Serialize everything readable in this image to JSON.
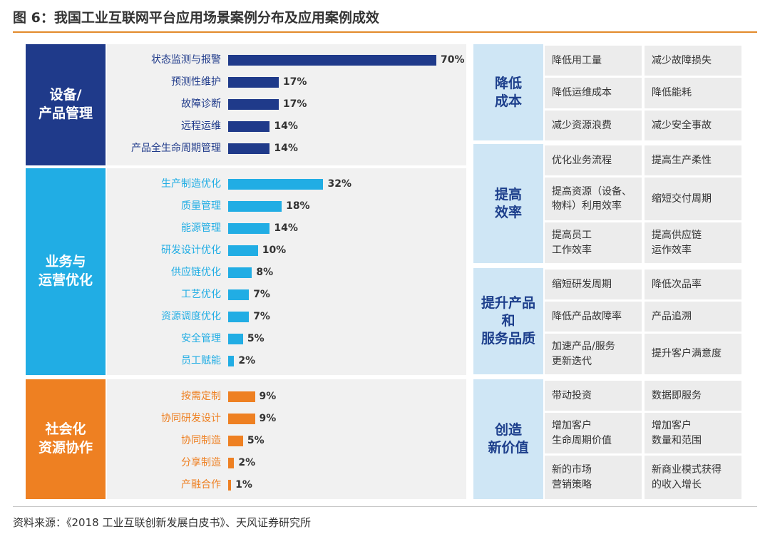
{
  "figure": {
    "title": "图 6：我国工业互联网平台应用场景案例分布及应用案例成效",
    "source": "资料来源：《2018 工业互联创新发展白皮书》、天风证券研究所"
  },
  "colors": {
    "navy": "#1f3a8a",
    "cyan": "#21ade4",
    "orange": "#ee8022",
    "accent_rule": "#e28a2b",
    "outcome_header_bg": "#cfe6f5",
    "outcome_header_text": "#1d3f8c"
  },
  "chart_data": {
    "type": "bar",
    "orientation": "horizontal",
    "unit": "%",
    "xlim": [
      0,
      70
    ],
    "grid": false,
    "groups": [
      {
        "name": "设备/\n产品管理",
        "color": "#1f3a8a",
        "categories": [
          "状态监测与报警",
          "预测性维护",
          "故障诊断",
          "远程运维",
          "产品全生命周期管理"
        ],
        "values": [
          70,
          17,
          17,
          14,
          14
        ],
        "labels": [
          "70%",
          "17%",
          "17%",
          "14%",
          "14%"
        ]
      },
      {
        "name": "业务与\n运营优化",
        "color": "#21ade4",
        "categories": [
          "生产制造优化",
          "质量管理",
          "能源管理",
          "研发设计优化",
          "供应链优化",
          "工艺优化",
          "资源调度优化",
          "安全管理",
          "员工赋能"
        ],
        "values": [
          32,
          18,
          14,
          10,
          8,
          7,
          7,
          5,
          2
        ],
        "labels": [
          "32%",
          "18%",
          "14%",
          "10%",
          "8%",
          "7%",
          "7%",
          "5%",
          "2%"
        ]
      },
      {
        "name": "社会化\n资源协作",
        "color": "#ee8022",
        "categories": [
          "按需定制",
          "协同研发设计",
          "协同制造",
          "分享制造",
          "产融合作"
        ],
        "values": [
          9,
          9,
          5,
          2,
          1
        ],
        "labels": [
          "9%",
          "9%",
          "5%",
          "2%",
          "1%"
        ]
      }
    ]
  },
  "outcomes": [
    {
      "name": "降低\n成本",
      "rows": [
        [
          "降低用工量",
          "减少故障损失"
        ],
        [
          "降低运维成本",
          "降低能耗"
        ],
        [
          "减少资源浪费",
          "减少安全事故"
        ]
      ]
    },
    {
      "name": "提高\n效率",
      "rows": [
        [
          "优化业务流程",
          "提高生产柔性"
        ],
        [
          "提高资源（设备、\n物料）利用效率",
          "缩短交付周期"
        ],
        [
          "提高员工\n工作效率",
          "提高供应链\n运作效率"
        ]
      ]
    },
    {
      "name": "提升产品\n和\n服务品质",
      "rows": [
        [
          "缩短研发周期",
          "降低次品率"
        ],
        [
          "降低产品故障率",
          "产品追溯"
        ],
        [
          "加速产品/服务\n更新迭代",
          "提升客户满意度"
        ]
      ]
    },
    {
      "name": "创造\n新价值",
      "rows": [
        [
          "带动投资",
          "数据即服务"
        ],
        [
          "增加客户\n生命周期价值",
          "增加客户\n数量和范围"
        ],
        [
          "新的市场\n营销策略",
          "新商业模式获得\n的收入增长"
        ]
      ]
    }
  ]
}
